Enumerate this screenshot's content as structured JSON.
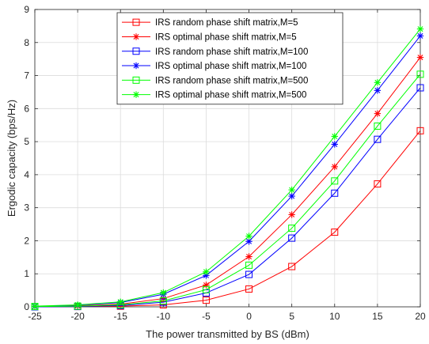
{
  "chart_data": {
    "type": "line",
    "xlabel": "The power transmitted by BS (dBm)",
    "ylabel": "Ergodic capacity (bps/Hz)",
    "xlim": [
      -25,
      20
    ],
    "ylim": [
      0,
      9
    ],
    "x_ticks": [
      -25,
      -20,
      -15,
      -10,
      -5,
      0,
      5,
      10,
      15,
      20
    ],
    "y_ticks": [
      0,
      1,
      2,
      3,
      4,
      5,
      6,
      7,
      8,
      9
    ],
    "grid": true,
    "legend_position": "top-center",
    "x": [
      -25,
      -20,
      -15,
      -10,
      -5,
      0,
      5,
      10,
      15,
      20
    ],
    "series": [
      {
        "name": "IRS random phase shift matrix,M=5",
        "color": "#ff0000",
        "marker": "square",
        "values": [
          0.0,
          0.01,
          0.02,
          0.06,
          0.2,
          0.54,
          1.22,
          2.26,
          3.72,
          5.33
        ]
      },
      {
        "name": "IRS optimal phase shift matrix,M=5",
        "color": "#ff0000",
        "marker": "asterisk",
        "values": [
          0.01,
          0.03,
          0.08,
          0.25,
          0.66,
          1.52,
          2.79,
          4.24,
          5.85,
          7.55
        ]
      },
      {
        "name": "IRS random phase shift matrix,M=100",
        "color": "#0000ff",
        "marker": "square",
        "values": [
          0.0,
          0.01,
          0.04,
          0.14,
          0.42,
          0.98,
          2.08,
          3.44,
          5.07,
          6.63
        ]
      },
      {
        "name": "IRS optimal phase shift matrix,M=100",
        "color": "#0000ff",
        "marker": "asterisk",
        "values": [
          0.01,
          0.05,
          0.13,
          0.38,
          0.95,
          1.98,
          3.35,
          4.92,
          6.55,
          8.2
        ]
      },
      {
        "name": "IRS random phase shift matrix,M=500",
        "color": "#00ff00",
        "marker": "square",
        "values": [
          0.01,
          0.02,
          0.06,
          0.18,
          0.52,
          1.26,
          2.38,
          3.81,
          5.47,
          7.04
        ]
      },
      {
        "name": "IRS optimal phase shift matrix,M=500",
        "color": "#00ff00",
        "marker": "asterisk",
        "values": [
          0.02,
          0.06,
          0.15,
          0.43,
          1.06,
          2.14,
          3.54,
          5.16,
          6.79,
          8.41
        ]
      }
    ]
  }
}
